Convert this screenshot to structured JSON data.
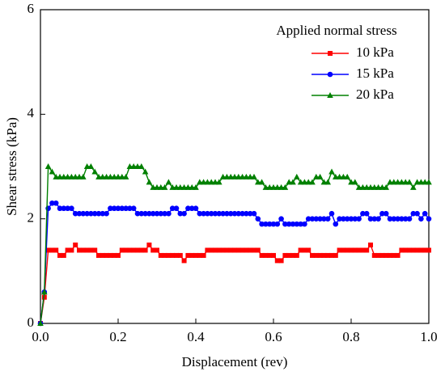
{
  "chart_data": {
    "type": "line",
    "xlabel": "Displacement (rev)",
    "ylabel": "Shear stress (kPa)",
    "legend_title": "Applied normal stress",
    "legend": "upper right",
    "xlim": [
      0,
      1
    ],
    "ylim": [
      0,
      6
    ],
    "xticks": [
      {
        "value": 0,
        "label": "0.0"
      },
      0.2,
      0.4,
      0.6,
      0.8,
      {
        "value": 1,
        "label": "1.0"
      }
    ],
    "yticks": [
      0,
      2,
      4,
      6
    ],
    "x": [
      0,
      0.01,
      0.02,
      0.03,
      0.04,
      0.05,
      0.06,
      0.07,
      0.08,
      0.09,
      0.1,
      0.11,
      0.12,
      0.13,
      0.14,
      0.15,
      0.16,
      0.17,
      0.18,
      0.19,
      0.2,
      0.21,
      0.22,
      0.23,
      0.24,
      0.25,
      0.26,
      0.27,
      0.28,
      0.29,
      0.3,
      0.31,
      0.32,
      0.33,
      0.34,
      0.35,
      0.36,
      0.37,
      0.38,
      0.39,
      0.4,
      0.41,
      0.42,
      0.43,
      0.44,
      0.45,
      0.46,
      0.47,
      0.48,
      0.49,
      0.5,
      0.51,
      0.52,
      0.53,
      0.54,
      0.55,
      0.56,
      0.57,
      0.58,
      0.59,
      0.6,
      0.61,
      0.62,
      0.63,
      0.64,
      0.65,
      0.66,
      0.67,
      0.68,
      0.69,
      0.7,
      0.71,
      0.72,
      0.73,
      0.74,
      0.75,
      0.76,
      0.77,
      0.78,
      0.79,
      0.8,
      0.81,
      0.82,
      0.83,
      0.84,
      0.85,
      0.86,
      0.87,
      0.88,
      0.89,
      0.9,
      0.91,
      0.92,
      0.93,
      0.94,
      0.95,
      0.96,
      0.97,
      0.98,
      0.99,
      1
    ],
    "series": [
      {
        "name": "10 kPa",
        "color": "#ff0000",
        "marker": "square",
        "values": [
          0,
          0.5,
          1.4,
          1.4,
          1.4,
          1.3,
          1.3,
          1.4,
          1.4,
          1.5,
          1.4,
          1.4,
          1.4,
          1.4,
          1.4,
          1.3,
          1.3,
          1.3,
          1.3,
          1.3,
          1.3,
          1.4,
          1.4,
          1.4,
          1.4,
          1.4,
          1.4,
          1.4,
          1.5,
          1.4,
          1.4,
          1.3,
          1.3,
          1.3,
          1.3,
          1.3,
          1.3,
          1.2,
          1.3,
          1.3,
          1.3,
          1.3,
          1.3,
          1.4,
          1.4,
          1.4,
          1.4,
          1.4,
          1.4,
          1.4,
          1.4,
          1.4,
          1.4,
          1.4,
          1.4,
          1.4,
          1.4,
          1.3,
          1.3,
          1.3,
          1.3,
          1.2,
          1.2,
          1.3,
          1.3,
          1.3,
          1.3,
          1.4,
          1.4,
          1.4,
          1.3,
          1.3,
          1.3,
          1.3,
          1.3,
          1.3,
          1.3,
          1.4,
          1.4,
          1.4,
          1.4,
          1.4,
          1.4,
          1.4,
          1.4,
          1.5,
          1.3,
          1.3,
          1.3,
          1.3,
          1.3,
          1.3,
          1.3,
          1.4,
          1.4,
          1.4,
          1.4,
          1.4,
          1.4,
          1.4,
          1.4
        ]
      },
      {
        "name": "15 kPa",
        "color": "#0000ff",
        "marker": "circle",
        "values": [
          0,
          0.6,
          2.2,
          2.3,
          2.3,
          2.2,
          2.2,
          2.2,
          2.2,
          2.1,
          2.1,
          2.1,
          2.1,
          2.1,
          2.1,
          2.1,
          2.1,
          2.1,
          2.2,
          2.2,
          2.2,
          2.2,
          2.2,
          2.2,
          2.2,
          2.1,
          2.1,
          2.1,
          2.1,
          2.1,
          2.1,
          2.1,
          2.1,
          2.1,
          2.2,
          2.2,
          2.1,
          2.1,
          2.2,
          2.2,
          2.2,
          2.1,
          2.1,
          2.1,
          2.1,
          2.1,
          2.1,
          2.1,
          2.1,
          2.1,
          2.1,
          2.1,
          2.1,
          2.1,
          2.1,
          2.1,
          2.0,
          1.9,
          1.9,
          1.9,
          1.9,
          1.9,
          2.0,
          1.9,
          1.9,
          1.9,
          1.9,
          1.9,
          1.9,
          2.0,
          2.0,
          2.0,
          2.0,
          2.0,
          2.0,
          2.1,
          1.9,
          2.0,
          2.0,
          2.0,
          2.0,
          2.0,
          2.0,
          2.1,
          2.1,
          2.0,
          2.0,
          2.0,
          2.1,
          2.1,
          2.0,
          2.0,
          2.0,
          2.0,
          2.0,
          2.0,
          2.1,
          2.1,
          2.0,
          2.1,
          2.0
        ]
      },
      {
        "name": "20 kPa",
        "color": "#008000",
        "marker": "triangle",
        "values": [
          0,
          0.6,
          3.0,
          2.9,
          2.8,
          2.8,
          2.8,
          2.8,
          2.8,
          2.8,
          2.8,
          2.8,
          3.0,
          3.0,
          2.9,
          2.8,
          2.8,
          2.8,
          2.8,
          2.8,
          2.8,
          2.8,
          2.8,
          3.0,
          3.0,
          3.0,
          3.0,
          2.9,
          2.7,
          2.6,
          2.6,
          2.6,
          2.6,
          2.7,
          2.6,
          2.6,
          2.6,
          2.6,
          2.6,
          2.6,
          2.6,
          2.7,
          2.7,
          2.7,
          2.7,
          2.7,
          2.7,
          2.8,
          2.8,
          2.8,
          2.8,
          2.8,
          2.8,
          2.8,
          2.8,
          2.8,
          2.7,
          2.7,
          2.6,
          2.6,
          2.6,
          2.6,
          2.6,
          2.6,
          2.7,
          2.7,
          2.8,
          2.7,
          2.7,
          2.7,
          2.7,
          2.8,
          2.8,
          2.7,
          2.7,
          2.9,
          2.8,
          2.8,
          2.8,
          2.8,
          2.7,
          2.7,
          2.6,
          2.6,
          2.6,
          2.6,
          2.6,
          2.6,
          2.6,
          2.6,
          2.7,
          2.7,
          2.7,
          2.7,
          2.7,
          2.7,
          2.6,
          2.7,
          2.7,
          2.7,
          2.7
        ]
      }
    ]
  }
}
